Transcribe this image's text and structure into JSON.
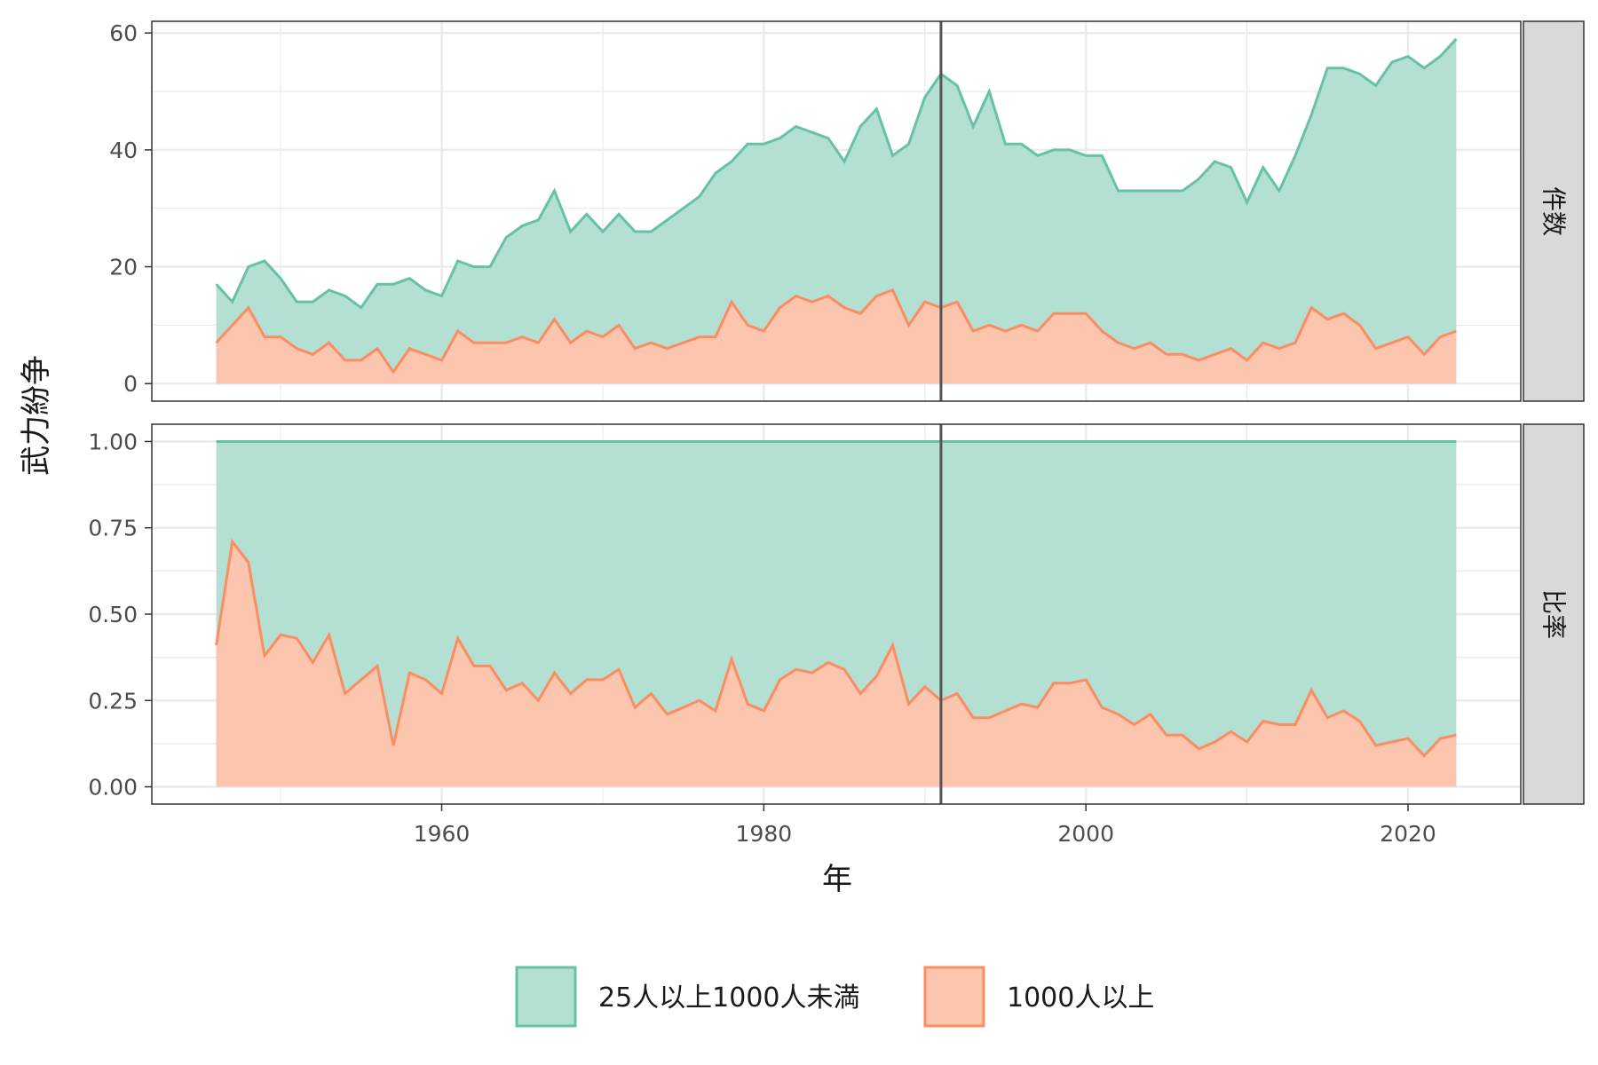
{
  "chart_data": {
    "type": "area",
    "x_label": "年",
    "y_label": "武力紛争",
    "x_ticks": [
      1960,
      1980,
      2000,
      2020
    ],
    "xlim": [
      1942,
      2027
    ],
    "reference_line_x": 1991,
    "grid": true,
    "legend_position": "bottom",
    "years": [
      1946,
      1947,
      1948,
      1949,
      1950,
      1951,
      1952,
      1953,
      1954,
      1955,
      1956,
      1957,
      1958,
      1959,
      1960,
      1961,
      1962,
      1963,
      1964,
      1965,
      1966,
      1967,
      1968,
      1969,
      1970,
      1971,
      1972,
      1973,
      1974,
      1975,
      1976,
      1977,
      1978,
      1979,
      1980,
      1981,
      1982,
      1983,
      1984,
      1985,
      1986,
      1987,
      1988,
      1989,
      1990,
      1991,
      1992,
      1993,
      1994,
      1995,
      1996,
      1997,
      1998,
      1999,
      2000,
      2001,
      2002,
      2003,
      2004,
      2005,
      2006,
      2007,
      2008,
      2009,
      2010,
      2011,
      2012,
      2013,
      2014,
      2015,
      2016,
      2017,
      2018,
      2019,
      2020,
      2021,
      2022,
      2023
    ],
    "series": [
      {
        "name": "25人以上1000人未満",
        "color": "#66c2a5",
        "fill": "#b3e0d2"
      },
      {
        "name": "1000人以上",
        "color": "#fc8d62",
        "fill": "#fcc5ae"
      }
    ],
    "panels": [
      {
        "strip": "件数",
        "y_ticks": [
          "0",
          "20",
          "40",
          "60"
        ],
        "ylim": [
          -3,
          62
        ],
        "total": [
          17,
          14,
          20,
          21,
          18,
          14,
          14,
          16,
          15,
          13,
          17,
          17,
          18,
          16,
          15,
          21,
          20,
          20,
          25,
          27,
          28,
          33,
          26,
          29,
          26,
          29,
          26,
          26,
          28,
          30,
          32,
          36,
          38,
          41,
          41,
          42,
          44,
          43,
          42,
          38,
          44,
          47,
          39,
          41,
          49,
          53,
          51,
          44,
          50,
          41,
          41,
          39,
          40,
          40,
          39,
          39,
          33,
          33,
          33,
          33,
          33,
          35,
          38,
          37,
          31,
          37,
          33,
          39,
          46,
          54,
          54,
          53,
          51,
          55,
          56,
          54,
          56,
          59
        ],
        "high": [
          7,
          10,
          13,
          8,
          8,
          6,
          5,
          7,
          4,
          4,
          6,
          2,
          6,
          5,
          4,
          9,
          7,
          7,
          7,
          8,
          7,
          11,
          7,
          9,
          8,
          10,
          6,
          7,
          6,
          7,
          8,
          8,
          14,
          10,
          9,
          13,
          15,
          14,
          15,
          13,
          12,
          15,
          16,
          10,
          14,
          13,
          14,
          9,
          10,
          9,
          10,
          9,
          12,
          12,
          12,
          9,
          7,
          6,
          7,
          5,
          5,
          4,
          5,
          6,
          4,
          7,
          6,
          7,
          13,
          11,
          12,
          10,
          6,
          7,
          8,
          5,
          8,
          9
        ]
      },
      {
        "strip": "比率",
        "y_ticks": [
          "0.00",
          "0.25",
          "0.50",
          "0.75",
          "1.00"
        ],
        "ylim": [
          -0.05,
          1.05
        ],
        "total": [
          1,
          1,
          1,
          1,
          1,
          1,
          1,
          1,
          1,
          1,
          1,
          1,
          1,
          1,
          1,
          1,
          1,
          1,
          1,
          1,
          1,
          1,
          1,
          1,
          1,
          1,
          1,
          1,
          1,
          1,
          1,
          1,
          1,
          1,
          1,
          1,
          1,
          1,
          1,
          1,
          1,
          1,
          1,
          1,
          1,
          1,
          1,
          1,
          1,
          1,
          1,
          1,
          1,
          1,
          1,
          1,
          1,
          1,
          1,
          1,
          1,
          1,
          1,
          1,
          1,
          1,
          1,
          1,
          1,
          1,
          1,
          1,
          1,
          1,
          1,
          1,
          1,
          1
        ],
        "high": [
          0.41,
          0.71,
          0.65,
          0.38,
          0.44,
          0.43,
          0.36,
          0.44,
          0.27,
          0.31,
          0.35,
          0.12,
          0.33,
          0.31,
          0.27,
          0.43,
          0.35,
          0.35,
          0.28,
          0.3,
          0.25,
          0.33,
          0.27,
          0.31,
          0.31,
          0.34,
          0.23,
          0.27,
          0.21,
          0.23,
          0.25,
          0.22,
          0.37,
          0.24,
          0.22,
          0.31,
          0.34,
          0.33,
          0.36,
          0.34,
          0.27,
          0.32,
          0.41,
          0.24,
          0.29,
          0.25,
          0.27,
          0.2,
          0.2,
          0.22,
          0.24,
          0.23,
          0.3,
          0.3,
          0.31,
          0.23,
          0.21,
          0.18,
          0.21,
          0.15,
          0.15,
          0.11,
          0.13,
          0.16,
          0.13,
          0.19,
          0.18,
          0.18,
          0.28,
          0.2,
          0.22,
          0.19,
          0.12,
          0.13,
          0.14,
          0.09,
          0.14,
          0.15
        ]
      }
    ]
  }
}
